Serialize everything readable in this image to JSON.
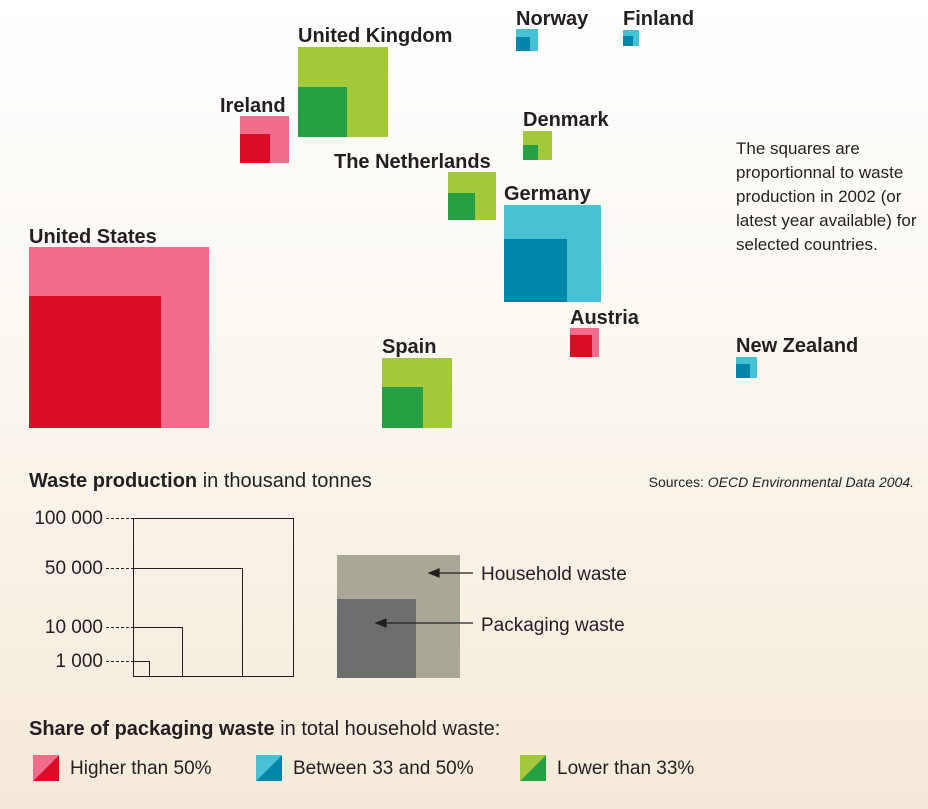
{
  "countries": [
    {
      "id": "united-states",
      "name": "United States",
      "category": "high"
    },
    {
      "id": "united-kingdom",
      "name": "United Kingdom",
      "category": "low"
    },
    {
      "id": "ireland",
      "name": "Ireland",
      "category": "high"
    },
    {
      "id": "netherlands",
      "name": "The Netherlands",
      "category": "low"
    },
    {
      "id": "norway",
      "name": "Norway",
      "category": "mid"
    },
    {
      "id": "finland",
      "name": "Finland",
      "category": "mid"
    },
    {
      "id": "denmark",
      "name": "Denmark",
      "category": "low"
    },
    {
      "id": "germany",
      "name": "Germany",
      "category": "mid"
    },
    {
      "id": "austria",
      "name": "Austria",
      "category": "high"
    },
    {
      "id": "spain",
      "name": "Spain",
      "category": "low"
    },
    {
      "id": "new-zealand",
      "name": "New Zealand",
      "category": "mid"
    }
  ],
  "note": "The squares are proportionnal to waste production in 2002 (or latest year available) for selected countries.",
  "scale": {
    "title_bold": "Waste production",
    "title_rest": " in thousand tonnes",
    "levels": [
      "100 000",
      "50 000",
      "10 000",
      "1 000"
    ]
  },
  "sources": {
    "prefix": "Sources: ",
    "title": "OECD Environmental Data 2004."
  },
  "key": {
    "household_label": "Household waste",
    "packaging_label": "Packaging waste"
  },
  "share": {
    "title_bold": "Share of packaging waste",
    "title_rest": " in total household waste:",
    "items": [
      {
        "label": "Higher than 50%"
      },
      {
        "label": "Between 33 and 50%"
      },
      {
        "label": "Lower than 33%"
      }
    ]
  },
  "colors": {
    "high_light": "#f26d8c",
    "high_dark": "#d90d23",
    "mid_light": "#47c1d4",
    "mid_dark": "#0086a8",
    "low_light": "#a3c93a",
    "low_dark": "#26a043",
    "key_light": "#a9a795",
    "key_dark": "#6d6e70"
  }
}
